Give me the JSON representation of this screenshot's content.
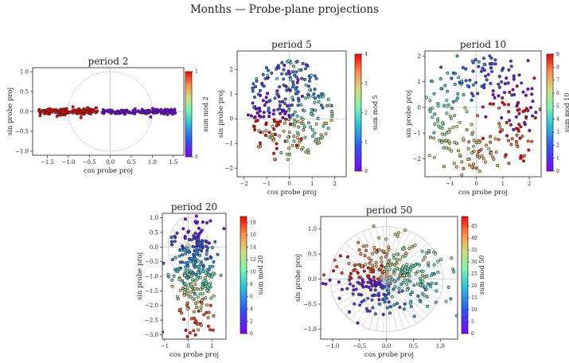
{
  "figure": {
    "title": "Months — Probe-plane projections"
  },
  "chart_data": [
    {
      "type": "scatter",
      "title": "period 2",
      "xlabel": "cos probe proj",
      "ylabel": "sin probe proj",
      "colorbar_label": "sum mod 2",
      "period": 2,
      "xlim": [
        -1.85,
        1.75
      ],
      "ylim": [
        -1.1,
        1.1
      ],
      "xticks": [
        -1.5,
        -1.0,
        -0.5,
        0.0,
        0.5,
        1.0,
        1.5
      ],
      "xticklabels": [
        "−1.5",
        "−1.0",
        "−0.5",
        "0.0",
        "0.5",
        "1.0",
        "1.5"
      ],
      "yticks": [
        -1.0,
        -0.5,
        0.0,
        0.5,
        1.0
      ],
      "yticklabels": [
        "−1.0",
        "−0.5",
        "0.0",
        "0.5",
        "1.0"
      ],
      "colorbar_ticks": [
        0,
        1
      ],
      "n_points": 260,
      "clusters": [
        {
          "class": 1,
          "x_range": [
            -1.7,
            -0.3
          ],
          "y_spread": 0.07
        },
        {
          "class": 0,
          "x_range": [
            -0.2,
            1.55
          ],
          "y_spread": 0.06
        }
      ],
      "unit_circle": true,
      "axes_lines": true
    },
    {
      "type": "scatter",
      "title": "period 5",
      "xlabel": "cos probe proj",
      "ylabel": "sin probe proj",
      "colorbar_label": "sum mod 5",
      "period": 5,
      "xlim": [
        -2.3,
        2.5
      ],
      "ylim": [
        -2.35,
        2.75
      ],
      "xticks": [
        -2,
        -1,
        0,
        1,
        2
      ],
      "xticklabels": [
        "−2",
        "−1",
        "0",
        "1",
        "2"
      ],
      "yticks": [
        -2,
        -1,
        0,
        1,
        2
      ],
      "yticklabels": [
        "−2",
        "−1",
        "0",
        "1",
        "2"
      ],
      "colorbar_ticks": [
        0,
        1,
        2,
        3,
        4
      ],
      "n_points": 300,
      "cloud": {
        "center": [
          0.0,
          0.3
        ],
        "radius": 1.9
      },
      "axes_lines": true
    },
    {
      "type": "scatter",
      "title": "period 10",
      "xlabel": "cos probe proj",
      "ylabel": "sin probe proj",
      "colorbar_label": "sum mod 10",
      "period": 10,
      "xlim": [
        -1.95,
        2.45
      ],
      "ylim": [
        -2.7,
        2.2
      ],
      "xticks": [
        -1,
        0,
        1,
        2
      ],
      "xticklabels": [
        "−1",
        "0",
        "1",
        "2"
      ],
      "yticks": [
        -2,
        -1,
        0,
        1,
        2
      ],
      "yticklabels": [
        "−2",
        "−1",
        "0",
        "1",
        "2"
      ],
      "colorbar_ticks": [
        0,
        1,
        2,
        3,
        4,
        5,
        6,
        7,
        8,
        9
      ],
      "n_points": 290,
      "ring": {
        "center": [
          0.25,
          -0.2
        ],
        "radius": 1.55,
        "spread": 0.45
      },
      "axes_lines": true
    },
    {
      "type": "scatter",
      "title": "period 20",
      "xlabel": "cos probe proj",
      "ylabel": "sin probe proj",
      "colorbar_label": "sum mod 20",
      "period": 20,
      "xlim": [
        -1.1,
        1.6
      ],
      "ylim": [
        -3.15,
        1.15
      ],
      "xticks": [
        -1,
        0,
        1
      ],
      "xticklabels": [
        "−1",
        "0",
        "1"
      ],
      "yticks": [
        -3.0,
        -2.5,
        -2.0,
        -1.5,
        -1.0,
        -0.5,
        0.0,
        0.5,
        1.0
      ],
      "yticklabels": [
        "−3.0",
        "−2.5",
        "−2.0",
        "−1.5",
        "−1.0",
        "−0.5",
        "0.0",
        "0.5",
        "1.0"
      ],
      "colorbar_ticks": [
        0,
        2,
        4,
        6,
        8,
        10,
        12,
        14,
        16,
        18
      ],
      "n_points": 300,
      "cloud": {
        "center": [
          0.35,
          -0.8
        ],
        "spread": [
          0.45,
          1.0
        ]
      },
      "spokes": 20,
      "axes_lines": true
    },
    {
      "type": "scatter",
      "title": "period 50",
      "xlabel": "cos probe proj",
      "ylabel": "sin probe proj",
      "colorbar_label": "sum mod 50",
      "period": 50,
      "xlim": [
        -1.22,
        1.32
      ],
      "ylim": [
        -1.2,
        1.25
      ],
      "xticks": [
        -1.0,
        -0.5,
        0.0,
        0.5,
        1.0
      ],
      "xticklabels": [
        "−1.0",
        "−0.5",
        "0.0",
        "0.5",
        "1.0"
      ],
      "yticks": [
        -1.0,
        -0.5,
        0.0,
        0.5,
        1.0
      ],
      "yticklabels": [
        "−1.0",
        "−0.5",
        "0.0",
        "0.5",
        "1.0"
      ],
      "colorbar_ticks": [
        0,
        5,
        10,
        15,
        20,
        25,
        30,
        35,
        40,
        45
      ],
      "n_points": 340,
      "cloud": {
        "center": [
          0.05,
          0.05
        ],
        "spread": [
          0.5,
          0.35
        ]
      },
      "spokes": 50,
      "axes_lines": true
    }
  ]
}
